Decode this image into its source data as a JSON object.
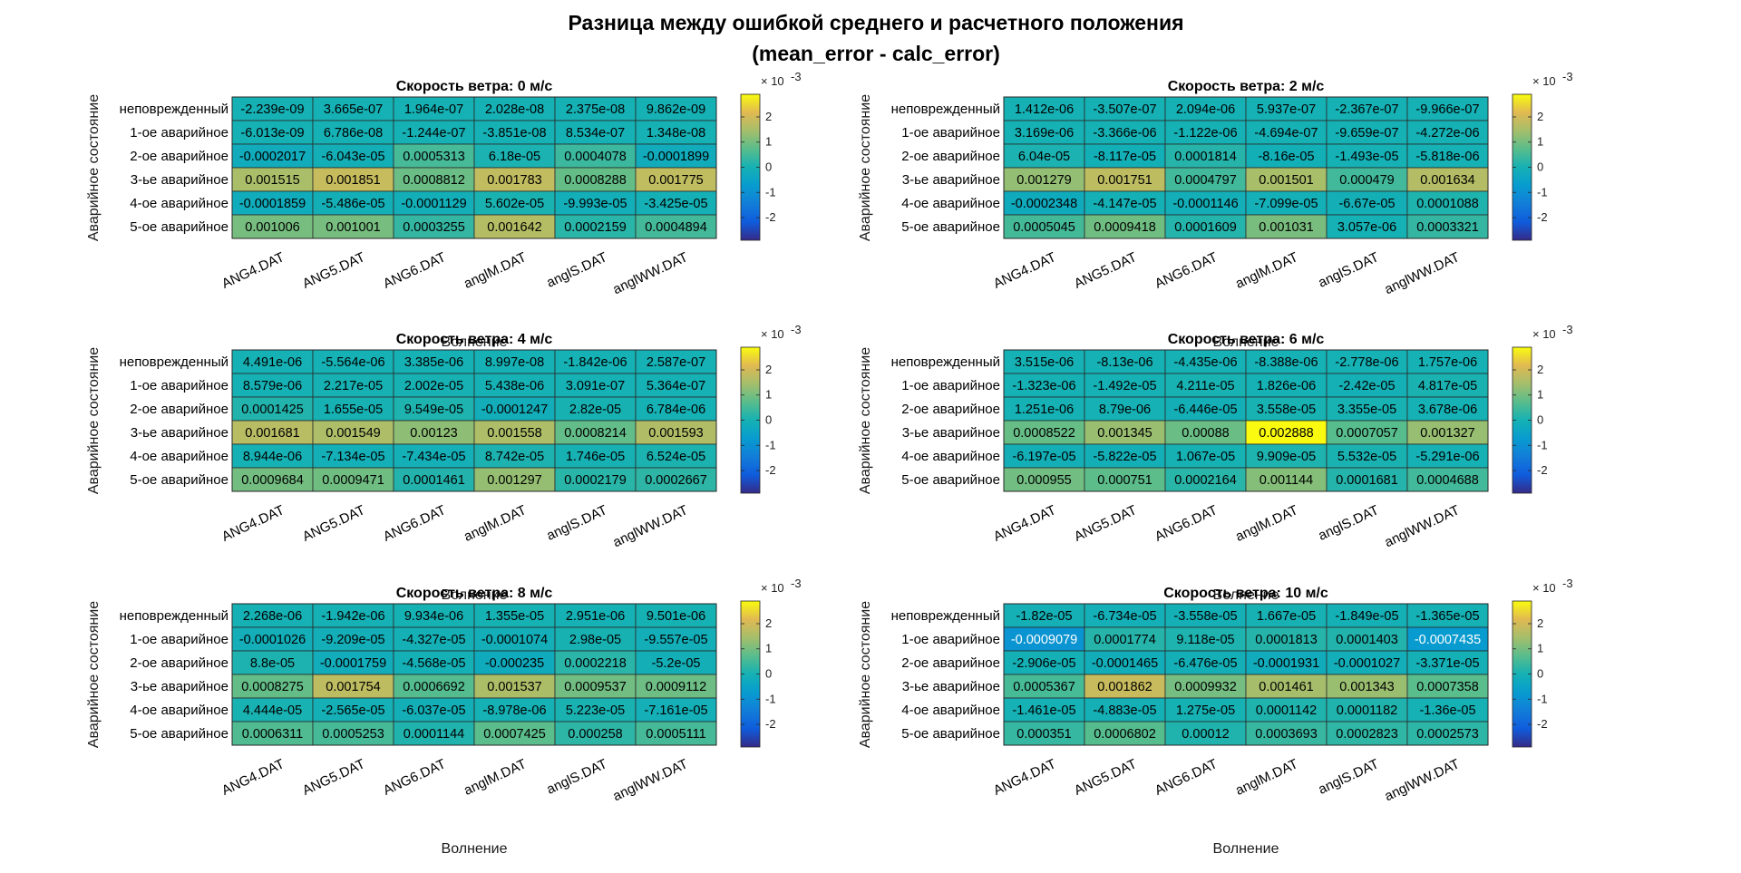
{
  "figure": {
    "title_line1": "Разница между ошибкой среднего и расчетного положения",
    "title_line2": "(mean_error - calc_error)"
  },
  "colorbar": {
    "ticks": [
      "2",
      "1",
      "0",
      "-1",
      "-2"
    ],
    "multiplier_base": "× 10",
    "multiplier_exp": "-3",
    "limits": [
      -0.0029,
      0.0029
    ],
    "colormap": "parula"
  },
  "chart_data": [
    {
      "type": "heatmap",
      "title": "Скорость ветра: 0 м/с",
      "xlabel": "Волнение",
      "ylabel": "Аварийное состояние",
      "x": [
        "ANG4.DAT",
        "ANG5.DAT",
        "ANG6.DAT",
        "anglM.DAT",
        "anglS.DAT",
        "anglWW.DAT"
      ],
      "y": [
        "неповрежденный",
        "1-ое аварийное",
        "2-ое аварийное",
        "3-ье аварийное",
        "4-ое аварийное",
        "5-ое аварийное"
      ],
      "values": [
        [
          -2.239e-09,
          3.665e-07,
          1.964e-07,
          2.028e-08,
          2.375e-08,
          9.862e-09
        ],
        [
          -6.013e-09,
          6.786e-08,
          -1.244e-07,
          -3.851e-08,
          8.534e-07,
          1.348e-08
        ],
        [
          -0.0002017,
          -6.043e-05,
          0.0005313,
          6.18e-05,
          0.0004078,
          -0.0001899
        ],
        [
          0.001515,
          0.001851,
          0.0008812,
          0.001783,
          0.0008288,
          0.001775
        ],
        [
          -0.0001859,
          -5.486e-05,
          -0.0001129,
          5.602e-05,
          -9.993e-05,
          -3.425e-05
        ],
        [
          0.001006,
          0.001001,
          0.0003255,
          0.001642,
          0.0002159,
          0.0004894
        ]
      ],
      "labels": [
        [
          "-2.239e-09",
          "3.665e-07",
          "1.964e-07",
          "2.028e-08",
          "2.375e-08",
          "9.862e-09"
        ],
        [
          "-6.013e-09",
          "6.786e-08",
          "-1.244e-07",
          "-3.851e-08",
          "8.534e-07",
          "1.348e-08"
        ],
        [
          "-0.0002017",
          "-6.043e-05",
          "0.0005313",
          "6.18e-05",
          "0.0004078",
          "-0.0001899"
        ],
        [
          "0.001515",
          "0.001851",
          "0.0008812",
          "0.001783",
          "0.0008288",
          "0.001775"
        ],
        [
          "-0.0001859",
          "-5.486e-05",
          "-0.0001129",
          "5.602e-05",
          "-9.993e-05",
          "-3.425e-05"
        ],
        [
          "0.001006",
          "0.001001",
          "0.0003255",
          "0.001642",
          "0.0002159",
          "0.0004894"
        ]
      ]
    },
    {
      "type": "heatmap",
      "title": "Скорость ветра: 2 м/с",
      "xlabel": "Волнение",
      "ylabel": "Аварийное состояние",
      "x": [
        "ANG4.DAT",
        "ANG5.DAT",
        "ANG6.DAT",
        "anglM.DAT",
        "anglS.DAT",
        "anglWW.DAT"
      ],
      "y": [
        "неповрежденный",
        "1-ое аварийное",
        "2-ое аварийное",
        "3-ье аварийное",
        "4-ое аварийное",
        "5-ое аварийное"
      ],
      "values": [
        [
          1.412e-06,
          -3.507e-07,
          2.094e-06,
          5.937e-07,
          -2.367e-07,
          -9.966e-07
        ],
        [
          3.169e-06,
          -3.366e-06,
          -1.122e-06,
          -4.694e-07,
          -9.659e-07,
          -4.272e-06
        ],
        [
          6.04e-05,
          -8.117e-05,
          0.0001814,
          -8.16e-05,
          -1.493e-05,
          -5.818e-06
        ],
        [
          0.001279,
          0.001751,
          0.0004797,
          0.001501,
          0.000479,
          0.001634
        ],
        [
          -0.0002348,
          -4.147e-05,
          -0.0001146,
          -7.099e-05,
          -6.67e-05,
          0.0001088
        ],
        [
          0.0005045,
          0.0009418,
          0.0001609,
          0.001031,
          3.057e-06,
          0.0003321
        ]
      ],
      "labels": [
        [
          "1.412e-06",
          "-3.507e-07",
          "2.094e-06",
          "5.937e-07",
          "-2.367e-07",
          "-9.966e-07"
        ],
        [
          "3.169e-06",
          "-3.366e-06",
          "-1.122e-06",
          "-4.694e-07",
          "-9.659e-07",
          "-4.272e-06"
        ],
        [
          "6.04e-05",
          "-8.117e-05",
          "0.0001814",
          "-8.16e-05",
          "-1.493e-05",
          "-5.818e-06"
        ],
        [
          "0.001279",
          "0.001751",
          "0.0004797",
          "0.001501",
          "0.000479",
          "0.001634"
        ],
        [
          "-0.0002348",
          "-4.147e-05",
          "-0.0001146",
          "-7.099e-05",
          "-6.67e-05",
          "0.0001088"
        ],
        [
          "0.0005045",
          "0.0009418",
          "0.0001609",
          "0.001031",
          "3.057e-06",
          "0.0003321"
        ]
      ]
    },
    {
      "type": "heatmap",
      "title": "Скорость ветра: 4 м/с",
      "xlabel": "Волнение",
      "ylabel": "Аварийное состояние",
      "x": [
        "ANG4.DAT",
        "ANG5.DAT",
        "ANG6.DAT",
        "anglM.DAT",
        "anglS.DAT",
        "anglWW.DAT"
      ],
      "y": [
        "неповрежденный",
        "1-ое аварийное",
        "2-ое аварийное",
        "3-ье аварийное",
        "4-ое аварийное",
        "5-ое аварийное"
      ],
      "values": [
        [
          4.491e-06,
          -5.564e-06,
          3.385e-06,
          8.997e-08,
          -1.842e-06,
          2.587e-07
        ],
        [
          8.579e-06,
          2.217e-05,
          2.002e-05,
          5.438e-06,
          3.091e-07,
          5.364e-07
        ],
        [
          0.0001425,
          1.655e-05,
          9.549e-05,
          -0.0001247,
          2.82e-05,
          6.784e-06
        ],
        [
          0.001681,
          0.001549,
          0.00123,
          0.001558,
          0.0008214,
          0.001593
        ],
        [
          8.944e-06,
          -7.134e-05,
          -7.434e-05,
          8.742e-05,
          1.746e-05,
          6.524e-05
        ],
        [
          0.0009684,
          0.0009471,
          0.0001461,
          0.001297,
          0.0002179,
          0.0002667
        ]
      ],
      "labels": [
        [
          "4.491e-06",
          "-5.564e-06",
          "3.385e-06",
          "8.997e-08",
          "-1.842e-06",
          "2.587e-07"
        ],
        [
          "8.579e-06",
          "2.217e-05",
          "2.002e-05",
          "5.438e-06",
          "3.091e-07",
          "5.364e-07"
        ],
        [
          "0.0001425",
          "1.655e-05",
          "9.549e-05",
          "-0.0001247",
          "2.82e-05",
          "6.784e-06"
        ],
        [
          "0.001681",
          "0.001549",
          "0.00123",
          "0.001558",
          "0.0008214",
          "0.001593"
        ],
        [
          "8.944e-06",
          "-7.134e-05",
          "-7.434e-05",
          "8.742e-05",
          "1.746e-05",
          "6.524e-05"
        ],
        [
          "0.0009684",
          "0.0009471",
          "0.0001461",
          "0.001297",
          "0.0002179",
          "0.0002667"
        ]
      ]
    },
    {
      "type": "heatmap",
      "title": "Скорость ветра: 6 м/с",
      "xlabel": "Волнение",
      "ylabel": "Аварийное состояние",
      "x": [
        "ANG4.DAT",
        "ANG5.DAT",
        "ANG6.DAT",
        "anglM.DAT",
        "anglS.DAT",
        "anglWW.DAT"
      ],
      "y": [
        "неповрежденный",
        "1-ое аварийное",
        "2-ое аварийное",
        "3-ье аварийное",
        "4-ое аварийное",
        "5-ое аварийное"
      ],
      "values": [
        [
          3.515e-06,
          -8.13e-06,
          -4.435e-06,
          -8.388e-06,
          -2.778e-06,
          1.757e-06
        ],
        [
          -1.323e-06,
          -1.492e-05,
          4.211e-05,
          1.826e-06,
          -2.42e-05,
          4.817e-05
        ],
        [
          1.251e-06,
          8.79e-06,
          -6.446e-05,
          3.558e-05,
          3.355e-05,
          3.678e-06
        ],
        [
          0.0008522,
          0.001345,
          0.00088,
          0.002888,
          0.0007057,
          0.001327
        ],
        [
          -6.197e-05,
          -5.822e-05,
          1.067e-05,
          9.909e-05,
          5.532e-05,
          -5.291e-06
        ],
        [
          0.000955,
          0.000751,
          0.0002164,
          0.001144,
          0.0001681,
          0.0004688
        ]
      ],
      "labels": [
        [
          "3.515e-06",
          "-8.13e-06",
          "-4.435e-06",
          "-8.388e-06",
          "-2.778e-06",
          "1.757e-06"
        ],
        [
          "-1.323e-06",
          "-1.492e-05",
          "4.211e-05",
          "1.826e-06",
          "-2.42e-05",
          "4.817e-05"
        ],
        [
          "1.251e-06",
          "8.79e-06",
          "-6.446e-05",
          "3.558e-05",
          "3.355e-05",
          "3.678e-06"
        ],
        [
          "0.0008522",
          "0.001345",
          "0.00088",
          "0.002888",
          "0.0007057",
          "0.001327"
        ],
        [
          "-6.197e-05",
          "-5.822e-05",
          "1.067e-05",
          "9.909e-05",
          "5.532e-05",
          "-5.291e-06"
        ],
        [
          "0.000955",
          "0.000751",
          "0.0002164",
          "0.001144",
          "0.0001681",
          "0.0004688"
        ]
      ]
    },
    {
      "type": "heatmap",
      "title": "Скорость ветра: 8 м/с",
      "xlabel": "Волнение",
      "ylabel": "Аварийное состояние",
      "x": [
        "ANG4.DAT",
        "ANG5.DAT",
        "ANG6.DAT",
        "anglM.DAT",
        "anglS.DAT",
        "anglWW.DAT"
      ],
      "y": [
        "неповрежденный",
        "1-ое аварийное",
        "2-ое аварийное",
        "3-ье аварийное",
        "4-ое аварийное",
        "5-ое аварийное"
      ],
      "values": [
        [
          2.268e-06,
          -1.942e-06,
          9.934e-06,
          1.355e-05,
          2.951e-06,
          9.501e-06
        ],
        [
          -0.0001026,
          -9.209e-05,
          -4.327e-05,
          -0.0001074,
          2.98e-05,
          -9.557e-05
        ],
        [
          8.8e-05,
          -0.0001759,
          -4.568e-05,
          -0.000235,
          0.0002218,
          -5.2e-05
        ],
        [
          0.0008275,
          0.001754,
          0.0006692,
          0.001537,
          0.0009537,
          0.0009112
        ],
        [
          4.444e-05,
          -2.565e-05,
          -6.037e-05,
          -8.978e-06,
          5.223e-05,
          -7.161e-05
        ],
        [
          0.0006311,
          0.0005253,
          0.0001144,
          0.0007425,
          0.000258,
          0.0005111
        ]
      ],
      "labels": [
        [
          "2.268e-06",
          "-1.942e-06",
          "9.934e-06",
          "1.355e-05",
          "2.951e-06",
          "9.501e-06"
        ],
        [
          "-0.0001026",
          "-9.209e-05",
          "-4.327e-05",
          "-0.0001074",
          "2.98e-05",
          "-9.557e-05"
        ],
        [
          "8.8e-05",
          "-0.0001759",
          "-4.568e-05",
          "-0.000235",
          "0.0002218",
          "-5.2e-05"
        ],
        [
          "0.0008275",
          "0.001754",
          "0.0006692",
          "0.001537",
          "0.0009537",
          "0.0009112"
        ],
        [
          "4.444e-05",
          "-2.565e-05",
          "-6.037e-05",
          "-8.978e-06",
          "5.223e-05",
          "-7.161e-05"
        ],
        [
          "0.0006311",
          "0.0005253",
          "0.0001144",
          "0.0007425",
          "0.000258",
          "0.0005111"
        ]
      ]
    },
    {
      "type": "heatmap",
      "title": "Скорость ветра: 10 м/с",
      "xlabel": "Волнение",
      "ylabel": "Аварийное состояние",
      "x": [
        "ANG4.DAT",
        "ANG5.DAT",
        "ANG6.DAT",
        "anglM.DAT",
        "anglS.DAT",
        "anglWW.DAT"
      ],
      "y": [
        "неповрежденный",
        "1-ое аварийное",
        "2-ое аварийное",
        "3-ье аварийное",
        "4-ое аварийное",
        "5-ое аварийное"
      ],
      "values": [
        [
          -1.82e-05,
          -6.734e-05,
          -3.558e-05,
          1.667e-05,
          -1.849e-05,
          -1.365e-05
        ],
        [
          -0.0009079,
          0.0001774,
          9.118e-05,
          0.0001813,
          0.0001403,
          -0.0007435
        ],
        [
          -2.906e-05,
          -0.0001465,
          -6.476e-05,
          -0.0001931,
          -0.0001027,
          -3.371e-05
        ],
        [
          0.0005367,
          0.001862,
          0.0009932,
          0.001461,
          0.001343,
          0.0007358
        ],
        [
          -1.461e-05,
          -4.883e-05,
          1.275e-05,
          0.0001142,
          0.0001182,
          -1.36e-05
        ],
        [
          0.000351,
          0.0006802,
          0.00012,
          0.0003693,
          0.0002823,
          0.0002573
        ]
      ],
      "labels": [
        [
          "-1.82e-05",
          "-6.734e-05",
          "-3.558e-05",
          "1.667e-05",
          "-1.849e-05",
          "-1.365e-05"
        ],
        [
          "-0.0009079",
          "0.0001774",
          "9.118e-05",
          "0.0001813",
          "0.0001403",
          "-0.0007435"
        ],
        [
          "-2.906e-05",
          "-0.0001465",
          "-6.476e-05",
          "-0.0001931",
          "-0.0001027",
          "-3.371e-05"
        ],
        [
          "0.0005367",
          "0.001862",
          "0.0009932",
          "0.001461",
          "0.001343",
          "0.0007358"
        ],
        [
          "-1.461e-05",
          "-4.883e-05",
          "1.275e-05",
          "0.0001142",
          "0.0001182",
          "-1.36e-05"
        ],
        [
          "0.000351",
          "0.0006802",
          "0.00012",
          "0.0003693",
          "0.0002823",
          "0.0002573"
        ]
      ]
    }
  ]
}
